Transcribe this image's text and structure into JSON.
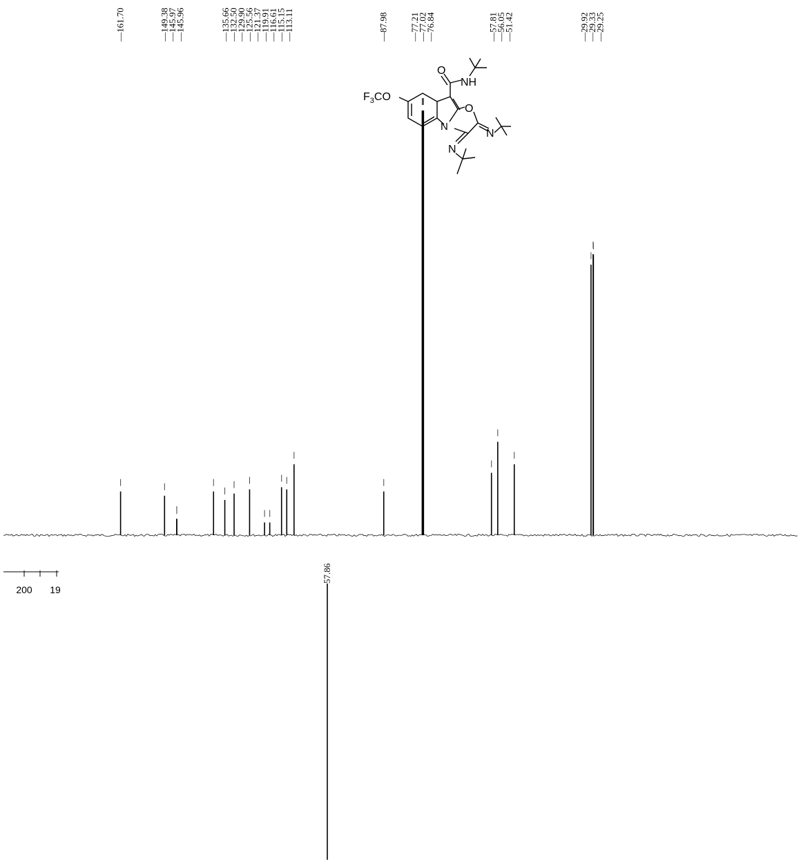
{
  "chart_data": [
    {
      "type": "line",
      "title": "",
      "xlabel": "",
      "ylabel": "",
      "peak_labels": [
        [
          "161.70"
        ],
        [
          "149.38",
          "145.97",
          "145.96"
        ],
        [
          "135.66",
          "132.50",
          "129.90",
          "125.56",
          "121.37",
          "119.91",
          "116.61",
          "115.15",
          "113.11"
        ],
        [
          "87.98"
        ],
        [
          "77.21",
          "77.02",
          "76.84"
        ],
        [
          "57.81",
          "56.05",
          "51.42"
        ],
        [
          "29.92",
          "29.33",
          "29.25"
        ]
      ],
      "peaks": [
        {
          "ppm": 161.7,
          "intensity": 0.103
        },
        {
          "ppm": 149.38,
          "intensity": 0.093
        },
        {
          "ppm": 145.97,
          "intensity": 0.039
        },
        {
          "ppm": 145.96,
          "intensity": 0.037
        },
        {
          "ppm": 135.66,
          "intensity": 0.103
        },
        {
          "ppm": 132.5,
          "intensity": 0.083
        },
        {
          "ppm": 129.9,
          "intensity": 0.098
        },
        {
          "ppm": 125.56,
          "intensity": 0.108
        },
        {
          "ppm": 121.37,
          "intensity": 0.03
        },
        {
          "ppm": 119.91,
          "intensity": 0.03
        },
        {
          "ppm": 116.61,
          "intensity": 0.113
        },
        {
          "ppm": 115.15,
          "intensity": 0.108
        },
        {
          "ppm": 113.11,
          "intensity": 0.167
        },
        {
          "ppm": 87.98,
          "intensity": 0.103
        },
        {
          "ppm": 77.21,
          "intensity": 1.0
        },
        {
          "ppm": 77.02,
          "intensity": 1.0
        },
        {
          "ppm": 76.84,
          "intensity": 1.0
        },
        {
          "ppm": 57.81,
          "intensity": 0.147
        },
        {
          "ppm": 56.05,
          "intensity": 0.22
        },
        {
          "ppm": 51.42,
          "intensity": 0.167
        },
        {
          "ppm": 29.92,
          "intensity": 0.637
        },
        {
          "ppm": 29.33,
          "intensity": 0.662
        },
        {
          "ppm": 29.25,
          "intensity": 0.66
        }
      ],
      "xlim": [
        200,
        0
      ],
      "grid": false
    },
    {
      "type": "line",
      "title": "",
      "xlabel": "",
      "x_tick_labels": [
        "200",
        "19"
      ],
      "peak_labels": [
        "57.86"
      ],
      "peaks": [
        {
          "ppm": 57.86,
          "intensity": -1.0
        }
      ],
      "grid": false
    }
  ],
  "structure": {
    "groups": {
      "left": "F3CO",
      "amide": "NH",
      "carbonyl_o": "O",
      "ring_o": "O",
      "ring_n": "N",
      "exo_n_right": "N",
      "exo_n_bottom": "N"
    }
  }
}
